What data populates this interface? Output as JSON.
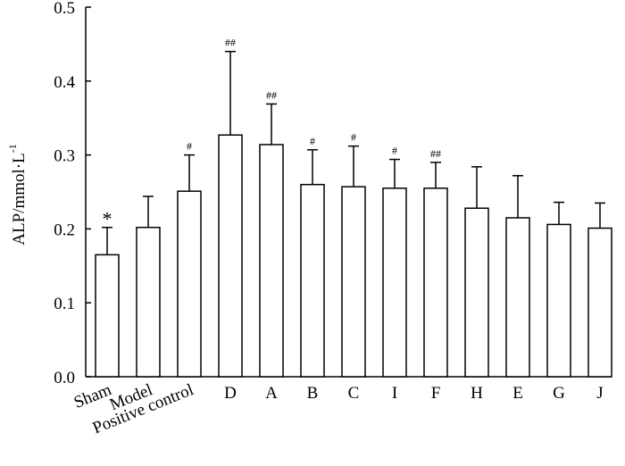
{
  "chart_data": {
    "type": "bar",
    "title": "",
    "xlabel": "",
    "ylabel": "ALP/mmol·L",
    "ylabel_superscript": "-1",
    "ylim": [
      0.0,
      0.5
    ],
    "yticks": [
      "0.0",
      "0.1",
      "0.2",
      "0.3",
      "0.4",
      "0.5"
    ],
    "grid": false,
    "legend": "none",
    "bar_fill": "#ffffff",
    "bar_stroke": "#000000",
    "categories": [
      "Sham",
      "Model",
      "Positive control",
      "D",
      "A",
      "B",
      "C",
      "I",
      "F",
      "H",
      "E",
      "G",
      "J"
    ],
    "values": [
      0.165,
      0.202,
      0.251,
      0.327,
      0.314,
      0.26,
      0.257,
      0.255,
      0.255,
      0.228,
      0.215,
      0.206,
      0.201
    ],
    "errors": [
      0.037,
      0.042,
      0.049,
      0.113,
      0.055,
      0.047,
      0.055,
      0.039,
      0.035,
      0.056,
      0.057,
      0.03,
      0.034
    ],
    "annotations": [
      "*",
      "",
      "#",
      "##",
      "##",
      "#",
      "#",
      "#",
      "##",
      "",
      "",
      "",
      ""
    ]
  }
}
